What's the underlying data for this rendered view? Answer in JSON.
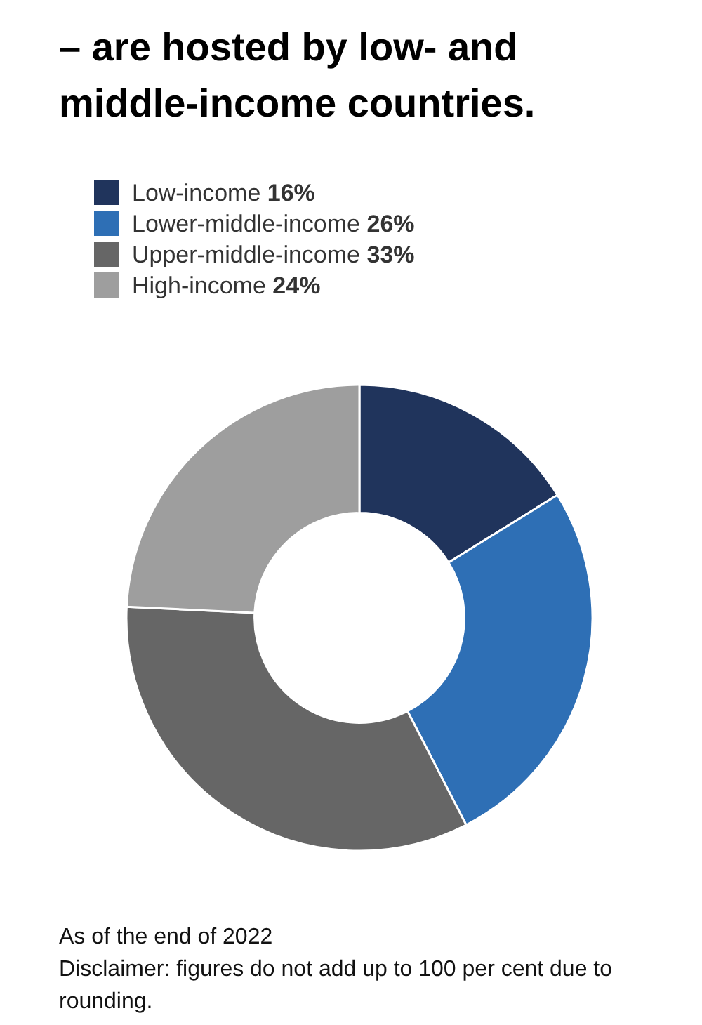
{
  "chart_data": {
    "type": "donut",
    "title": "– are hosted by low- and middle-income countries.",
    "categories": [
      "Low-income",
      "Lower-middle-income",
      "Upper-middle-income",
      "High-income"
    ],
    "values": [
      16,
      26,
      33,
      24
    ],
    "value_labels": [
      "16%",
      "26%",
      "33%",
      "24%"
    ],
    "colors": [
      "#20345c",
      "#2e6fb5",
      "#666666",
      "#9e9e9e"
    ],
    "legend": "top left",
    "annotations": [
      "As of the end of 2022",
      "Disclaimer: figures do not add up to 100 per cent due to rounding."
    ]
  }
}
